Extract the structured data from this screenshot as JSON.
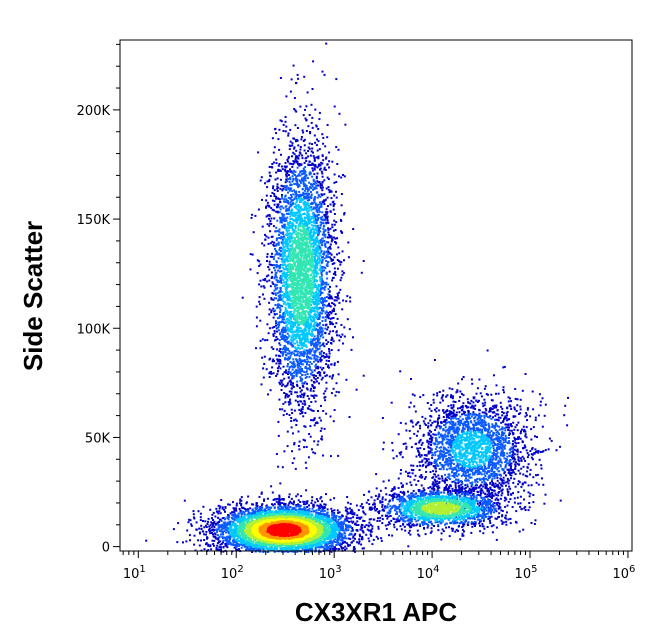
{
  "chart_data": {
    "type": "scatter",
    "xlabel": "CX3XR1 APC",
    "ylabel": "Side Scatter",
    "x_scale": "log",
    "xlim": [
      6.5,
      1100000
    ],
    "ylim": [
      -2000,
      232000
    ],
    "grid": false,
    "x_ticks": [
      {
        "value": 10,
        "label": "10",
        "exp": "1"
      },
      {
        "value": 100,
        "label": "10",
        "exp": "2"
      },
      {
        "value": 1000,
        "label": "10",
        "exp": "3"
      },
      {
        "value": 10000,
        "label": "10",
        "exp": "4"
      },
      {
        "value": 100000,
        "label": "10",
        "exp": "5"
      },
      {
        "value": 1000000,
        "label": "10",
        "exp": "6"
      }
    ],
    "y_ticks": [
      {
        "value": 0,
        "label": "0"
      },
      {
        "value": 50000,
        "label": "50K"
      },
      {
        "value": 100000,
        "label": "100K"
      },
      {
        "value": 150000,
        "label": "150K"
      },
      {
        "value": 200000,
        "label": "200K"
      }
    ],
    "density_colormap": [
      "#0000c8",
      "#0a5aff",
      "#00c8ff",
      "#32e6b4",
      "#b4f032",
      "#ffff00",
      "#ff9600",
      "#ff0000"
    ],
    "populations": [
      {
        "x_center": 300,
        "y_center": 8000,
        "x_spread_decades": 0.34,
        "y_spread": 5500,
        "count": 5200,
        "peak_density": 1.0
      },
      {
        "x_center": 450,
        "y_center": 125000,
        "x_spread_decades": 0.17,
        "y_spread": 30000,
        "count": 4200,
        "peak_density": 0.5
      },
      {
        "x_center": 12000,
        "y_center": 18000,
        "x_spread_decades": 0.32,
        "y_spread": 4500,
        "count": 1800,
        "peak_density": 0.6
      },
      {
        "x_center": 25000,
        "y_center": 45000,
        "x_spread_decades": 0.3,
        "y_spread": 12000,
        "count": 2300,
        "peak_density": 0.32
      }
    ]
  }
}
